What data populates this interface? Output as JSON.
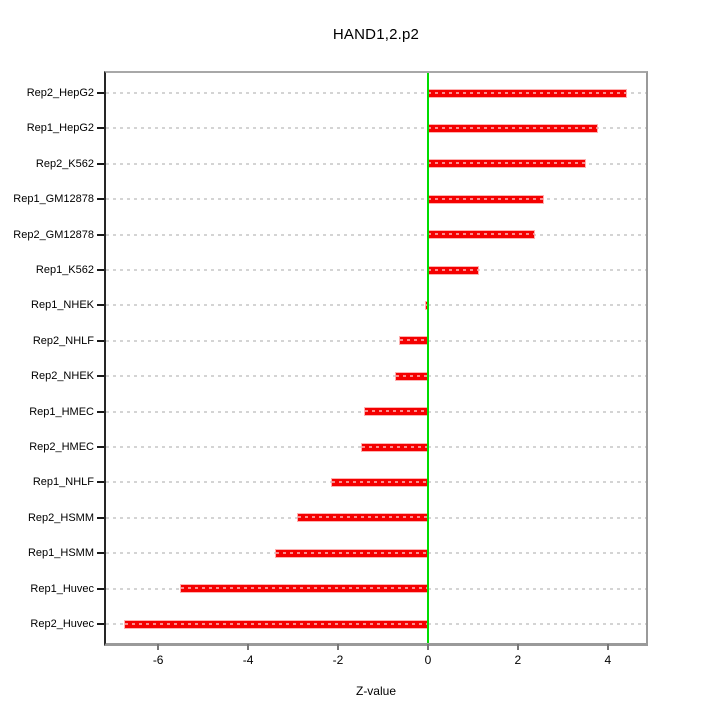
{
  "chart_data": {
    "type": "bar",
    "orientation": "horizontal",
    "title": "HAND1,2.p2",
    "xlabel": "Z-value",
    "categories": [
      "Rep2_HepG2",
      "Rep1_HepG2",
      "Rep2_K562",
      "Rep1_GM12878",
      "Rep2_GM12878",
      "Rep1_K562",
      "Rep1_NHEK",
      "Rep2_NHLF",
      "Rep2_NHEK",
      "Rep1_HMEC",
      "Rep2_HMEC",
      "Rep1_NHLF",
      "Rep2_HSMM",
      "Rep1_HSMM",
      "Rep1_Huvec",
      "Rep2_Huvec"
    ],
    "values": [
      4.4,
      3.75,
      3.5,
      2.55,
      2.37,
      1.11,
      -0.05,
      -0.62,
      -0.7,
      -1.4,
      -1.47,
      -2.13,
      -2.89,
      -3.37,
      -5.5,
      -6.73
    ],
    "xlim": [
      -7.16,
      4.85
    ],
    "xticks": [
      -6,
      -4,
      -2,
      0,
      2,
      4
    ],
    "xtick_labels": [
      "-6",
      "-4",
      "-2",
      "0",
      "2",
      "4"
    ],
    "grid": "dotted-horizontal-per-category",
    "legend": "none",
    "colors": {
      "bar": "#f40000",
      "bar_edge": "#ff9696",
      "zero_line": "#00dc00",
      "gridline": "#d4d4d4",
      "box_border": "#9a9a9a",
      "axis": "#1a1a1a",
      "text": "#000000"
    }
  }
}
